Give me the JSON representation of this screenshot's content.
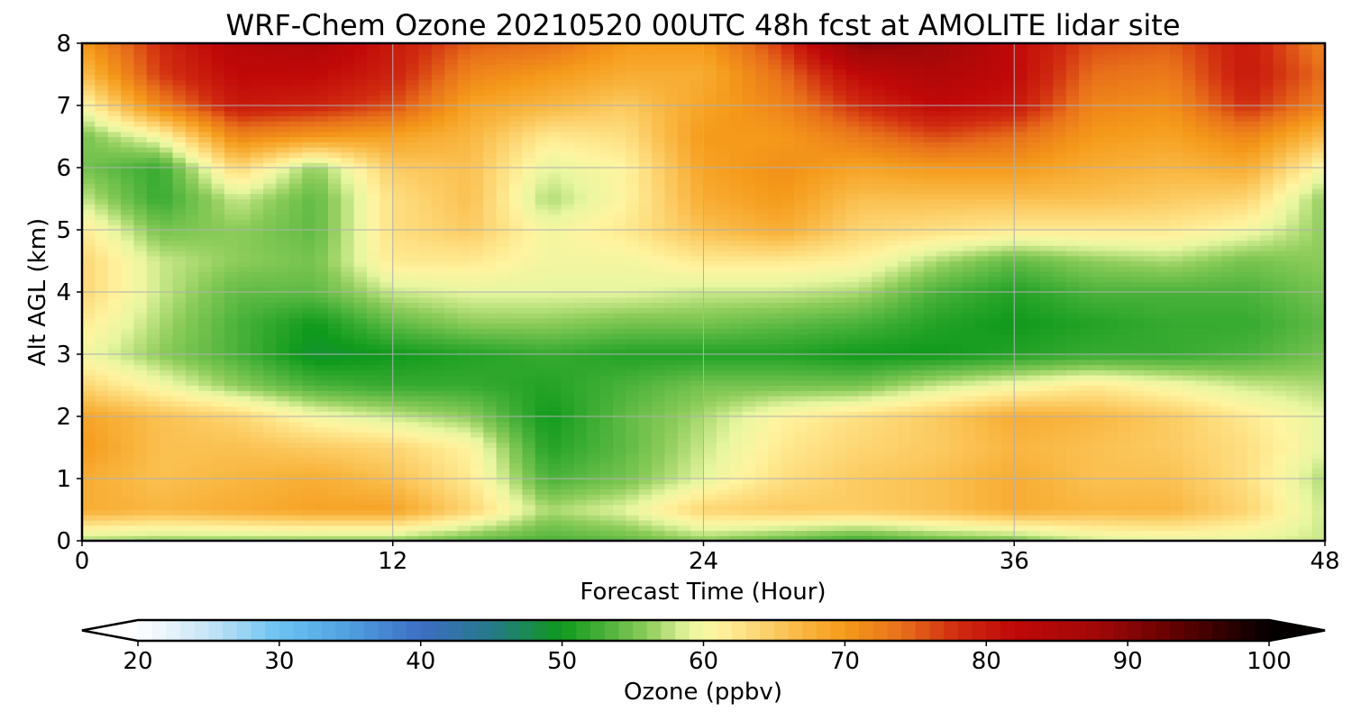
{
  "chart_data": {
    "type": "heatmap",
    "title": "WRF-Chem Ozone  20210520 00UTC 48h fcst at AMOLITE lidar site",
    "xlabel": "Forecast Time (Hour)",
    "ylabel": "Alt AGL (km)",
    "xlim": [
      0,
      48
    ],
    "ylim": [
      0,
      8
    ],
    "xticks": [
      0,
      12,
      24,
      36,
      48
    ],
    "yticks": [
      0,
      1,
      2,
      3,
      4,
      5,
      6,
      7,
      8
    ],
    "grid": true,
    "x": [
      0,
      3,
      6,
      9,
      12,
      15,
      18,
      21,
      24,
      27,
      30,
      33,
      36,
      39,
      42,
      45,
      48
    ],
    "y": [
      0,
      0.5,
      1,
      1.5,
      2,
      2.5,
      3,
      3.5,
      4,
      4.5,
      5,
      5.5,
      6,
      6.5,
      7,
      7.5,
      8
    ],
    "z": [
      [
        57,
        56,
        56,
        56,
        56,
        54,
        53,
        54,
        56,
        54,
        52,
        54,
        55,
        58,
        59,
        59,
        58
      ],
      [
        68,
        67,
        68,
        69,
        69,
        64,
        57,
        59,
        64,
        65,
        65,
        66,
        68,
        67,
        67,
        64,
        58
      ],
      [
        68,
        66,
        67,
        68,
        66,
        62,
        53,
        55,
        59,
        63,
        65,
        66,
        68,
        66,
        66,
        63,
        57
      ],
      [
        70,
        66,
        66,
        65,
        64,
        61,
        51,
        54,
        58,
        62,
        64,
        65,
        67,
        66,
        65,
        63,
        59
      ],
      [
        69,
        66,
        64,
        60,
        58,
        56,
        50,
        54,
        57,
        61,
        63,
        65,
        68,
        67,
        65,
        62,
        59
      ],
      [
        64,
        60,
        56,
        53,
        52,
        52,
        51,
        53,
        55,
        55,
        55,
        58,
        60,
        62,
        60,
        58,
        57
      ],
      [
        60,
        56,
        53,
        49,
        50,
        51,
        52,
        51,
        51,
        51,
        50,
        50,
        51,
        52,
        52,
        53,
        55
      ],
      [
        62,
        57,
        53,
        50,
        54,
        56,
        56,
        55,
        55,
        54,
        53,
        51,
        50,
        51,
        52,
        52,
        54
      ],
      [
        64,
        58,
        54,
        54,
        58,
        59,
        59,
        59,
        58,
        58,
        57,
        53,
        51,
        53,
        53,
        53,
        55
      ],
      [
        64,
        58,
        56,
        55,
        62,
        62,
        60,
        60,
        62,
        62,
        61,
        57,
        54,
        56,
        57,
        55,
        56
      ],
      [
        62,
        55,
        56,
        54,
        63,
        65,
        60,
        62,
        66,
        68,
        64,
        63,
        62,
        62,
        62,
        60,
        56
      ],
      [
        58,
        52,
        58,
        54,
        63,
        66,
        57,
        61,
        68,
        70,
        66,
        66,
        66,
        66,
        65,
        64,
        56
      ],
      [
        55,
        52,
        64,
        56,
        65,
        66,
        59,
        61,
        69,
        71,
        69,
        70,
        70,
        68,
        67,
        68,
        60
      ],
      [
        55,
        60,
        72,
        70,
        69,
        67,
        62,
        63,
        70,
        70,
        73,
        76,
        74,
        70,
        69,
        72,
        66
      ],
      [
        60,
        72,
        80,
        79,
        76,
        69,
        67,
        65,
        69,
        72,
        78,
        82,
        80,
        72,
        71,
        78,
        72
      ],
      [
        66,
        77,
        82,
        82,
        79,
        72,
        70,
        68,
        68,
        74,
        82,
        85,
        82,
        74,
        73,
        80,
        74
      ],
      [
        70,
        78,
        84,
        85,
        80,
        75,
        74,
        70,
        70,
        77,
        90,
        88,
        82,
        76,
        75,
        80,
        72
      ]
    ],
    "colorbar": {
      "label": "Ozone  (ppbv)",
      "min": 20,
      "max": 100,
      "ticks": [
        20,
        30,
        40,
        50,
        60,
        70,
        80,
        90,
        100
      ],
      "extend": "both",
      "stops": [
        [
          20,
          "#ffffff"
        ],
        [
          25,
          "#c6e4f6"
        ],
        [
          30,
          "#6bc3f2"
        ],
        [
          35,
          "#4f9fe0"
        ],
        [
          40,
          "#3d6ec4"
        ],
        [
          45,
          "#26798a"
        ],
        [
          50,
          "#0f9a1c"
        ],
        [
          53,
          "#4ab23a"
        ],
        [
          56,
          "#8ccc5a"
        ],
        [
          59,
          "#e8f6a0"
        ],
        [
          61,
          "#fff4a0"
        ],
        [
          64,
          "#fdd572"
        ],
        [
          67,
          "#f9b640"
        ],
        [
          70,
          "#f59a1a"
        ],
        [
          74,
          "#e8701a"
        ],
        [
          78,
          "#d02a10"
        ],
        [
          82,
          "#c00808"
        ],
        [
          88,
          "#a00808"
        ],
        [
          94,
          "#5a0000"
        ],
        [
          100,
          "#050000"
        ]
      ]
    }
  }
}
